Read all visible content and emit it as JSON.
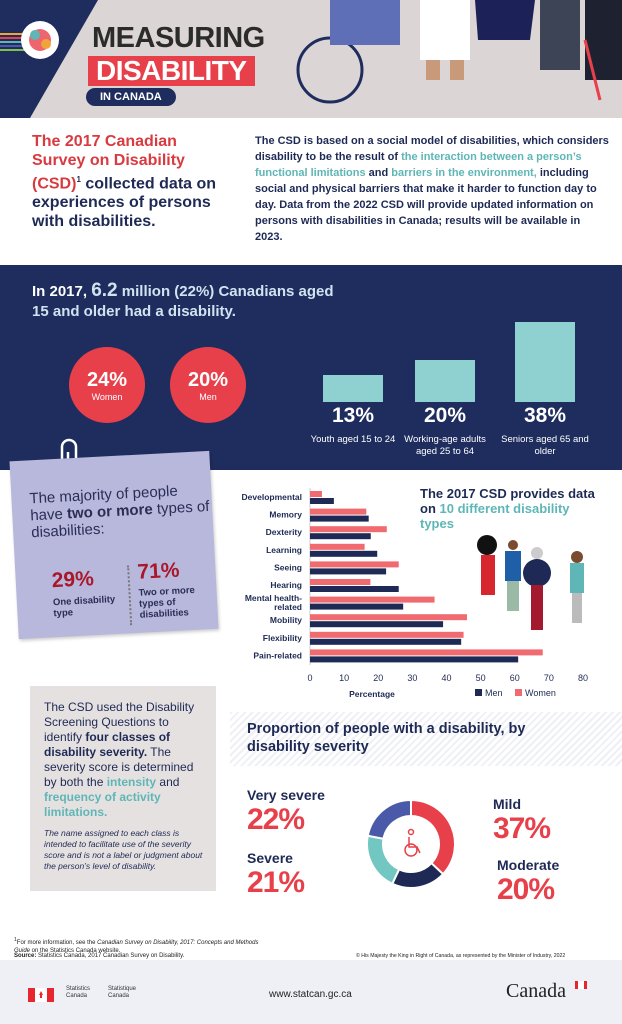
{
  "header": {
    "title_line1": "MEASURING",
    "title_line2": "DISABILITY",
    "title_line3": "IN CANADA"
  },
  "intro": {
    "headline_red": "The 2017 Canadian Survey on Disability (CSD)",
    "sup": "1",
    "headline_navy": " collected data on experiences of persons with disabilities.",
    "p1": "The CSD is based on a social model of disabilities, which considers disability to be the result of ",
    "p_teal1": "the interaction between a person’s functional limitations",
    "p2": " and ",
    "p_teal2": "barriers in the environment,",
    "p3": " including social and physical barriers that make it harder to function day to day. Data from the 2022 CSD will provide updated information on persons with disabilities in Canada; results will be available in 2023."
  },
  "overview": {
    "h1": "In 2017, ",
    "h_big": "6.2",
    "h2": " million (22%) Canadians aged 15 and older had a disability.",
    "sex": [
      {
        "pct": "24%",
        "label": "Women"
      },
      {
        "pct": "20%",
        "label": "Men"
      }
    ],
    "age": [
      {
        "pct": "13%",
        "label": "Youth aged 15 to 24",
        "value": 13
      },
      {
        "pct": "20%",
        "label": "Working-age adults aged 25 to 64",
        "value": 20
      },
      {
        "pct": "38%",
        "label": "Seniors aged 65 and older",
        "value": 38
      }
    ]
  },
  "note": {
    "h1": "The majority of people have ",
    "h_bold": "two or more",
    "h2": " types of disabilities:",
    "a_pct": "29%",
    "a_label": "One disability type",
    "b_pct": "71%",
    "b_label": "Two or more types of disabilities"
  },
  "types_title": {
    "t1": "The 2017 CSD provides data on ",
    "t_teal": "10 different disability types"
  },
  "severity_text": {
    "p1": "The CSD used the Disability Screening Questions to identify ",
    "b1": "four classes of disability severity.",
    "p2": " The severity score is determined by both the ",
    "t1": "intensity",
    "p3": " and ",
    "t2": "frequency of activity limitations.",
    "note": "The name assigned to each class is intended to facilitate use of the severity score and is not a label or judgment about the person’s level of disability."
  },
  "chart_data": [
    {
      "type": "bar",
      "orientation": "horizontal",
      "categories": [
        "Developmental",
        "Memory",
        "Dexterity",
        "Learning",
        "Seeing",
        "Hearing",
        "Mental health-related",
        "Mobility",
        "Flexibility",
        "Pain-related"
      ],
      "series": [
        {
          "name": "Women",
          "color": "#f06b6f",
          "values": [
            3.5,
            16.5,
            22.5,
            16,
            26,
            17.7,
            36.5,
            46,
            45,
            68.2
          ]
        },
        {
          "name": "Men",
          "color": "#1e2a55",
          "values": [
            7,
            17.2,
            17.8,
            19.7,
            22.3,
            26,
            27.3,
            39,
            44.3,
            61
          ]
        }
      ],
      "xlabel": "Percentage",
      "xlim": [
        0,
        80
      ],
      "xticks": [
        "0",
        "10",
        "20",
        "30",
        "40",
        "50",
        "60",
        "70",
        "80"
      ],
      "legend": "bottom-right"
    },
    {
      "type": "pie",
      "title": "Proportion of people with a disability, by disability severity",
      "donut": true,
      "slices": [
        {
          "label": "Mild",
          "pct": "37%",
          "value": 37,
          "color": "#e8404a"
        },
        {
          "label": "Moderate",
          "pct": "20%",
          "value": 20,
          "color": "#1e2a55"
        },
        {
          "label": "Severe",
          "pct": "21%",
          "value": 21,
          "color": "#72c7c2"
        },
        {
          "label": "Very severe",
          "pct": "22%",
          "value": 22,
          "color": "#4a5aa8"
        }
      ]
    }
  ],
  "footnote": {
    "f1": "For more information, see the ",
    "f_it": "Canadian Survey on Disability, 2017: Concepts and Methods Guide",
    "f2": " on the Statistics Canada website.",
    "src_b": "Source:",
    "src": " Statistics Canada, 2017 Canadian Survey on Disability.",
    "copyright": "© His Majesty the King in Right of Canada, as represented by the Minister of Industry, 2022"
  },
  "footer": {
    "en": "Statistics Canada",
    "fr": "Statistique Canada",
    "url": "www.statcan.gc.ca",
    "wordmark": "Canada"
  }
}
